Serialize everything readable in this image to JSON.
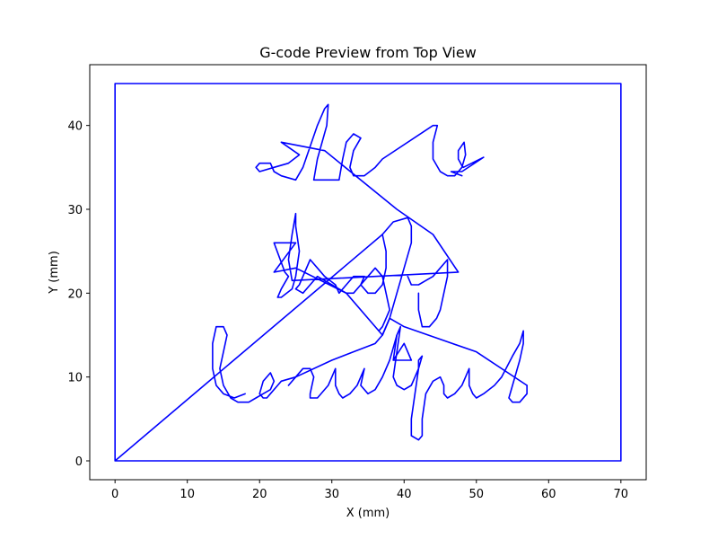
{
  "chart_data": {
    "type": "line",
    "title": "G-code Preview from Top View",
    "xlabel": "X (mm)",
    "ylabel": "Y (mm)",
    "xlim": [
      -3.5,
      73.5
    ],
    "ylim": [
      -2.25,
      47.25
    ],
    "xticks": [
      0,
      10,
      20,
      30,
      40,
      50,
      60,
      70
    ],
    "yticks": [
      0,
      10,
      20,
      30,
      40
    ],
    "grid": false,
    "line_color": "#0000ff",
    "series": [
      {
        "points": [
          [
            0,
            0
          ],
          [
            0,
            45
          ],
          [
            70,
            45
          ],
          [
            70,
            0
          ],
          [
            0,
            0
          ],
          [
            13,
            9.5
          ],
          [
            37,
            27
          ],
          [
            38.5,
            28.5
          ],
          [
            40.5,
            29
          ],
          [
            41,
            28
          ],
          [
            41,
            26
          ],
          [
            40,
            23
          ],
          [
            39,
            20
          ],
          [
            38,
            17
          ],
          [
            37,
            15
          ],
          [
            37,
            15
          ],
          [
            32,
            20
          ],
          [
            25,
            23
          ],
          [
            22,
            22.5
          ],
          [
            25,
            26
          ],
          [
            22,
            26
          ],
          [
            23.5,
            22.5
          ],
          [
            24,
            22
          ],
          [
            23,
            20.5
          ],
          [
            22.5,
            19.5
          ],
          [
            23,
            19.5
          ],
          [
            24.5,
            20.5
          ],
          [
            25,
            22
          ],
          [
            25.5,
            25
          ],
          [
            25,
            28
          ],
          [
            25,
            29.5
          ],
          [
            24.5,
            27
          ],
          [
            24,
            24
          ],
          [
            24.5,
            21.5
          ],
          [
            24.5,
            21.5
          ],
          [
            47.5,
            22.5
          ],
          [
            44,
            27
          ],
          [
            39,
            30
          ],
          [
            29,
            37
          ],
          [
            23,
            38
          ],
          [
            25.5,
            36.5
          ],
          [
            24,
            35.5
          ],
          [
            22,
            35
          ],
          [
            20,
            34.5
          ],
          [
            19.5,
            35
          ],
          [
            20,
            35.5
          ],
          [
            21.5,
            35.5
          ],
          [
            22,
            34.5
          ],
          [
            23,
            34
          ],
          [
            25,
            33.5
          ],
          [
            25,
            33.5
          ],
          [
            26,
            35
          ],
          [
            27,
            37.5
          ],
          [
            28,
            40
          ],
          [
            29,
            42
          ],
          [
            29.5,
            42.5
          ],
          [
            29.3,
            40
          ],
          [
            28,
            36
          ],
          [
            27.5,
            33.5
          ],
          [
            31,
            33.5
          ],
          [
            31.5,
            36
          ],
          [
            32,
            38
          ],
          [
            33,
            39
          ],
          [
            34,
            38.5
          ],
          [
            33,
            37
          ],
          [
            32.5,
            35
          ],
          [
            33,
            34
          ],
          [
            34.5,
            34
          ],
          [
            36,
            35
          ],
          [
            37,
            36
          ],
          [
            44,
            40
          ],
          [
            44.6,
            40
          ],
          [
            44,
            38
          ],
          [
            44,
            36
          ],
          [
            45,
            34.5
          ],
          [
            46,
            34
          ],
          [
            47,
            34
          ],
          [
            48,
            35
          ],
          [
            48.5,
            36.5
          ],
          [
            48.3,
            38
          ],
          [
            47.5,
            37
          ],
          [
            47.5,
            36
          ],
          [
            48,
            35.2
          ],
          [
            48.2,
            35
          ],
          [
            51,
            36.2
          ],
          [
            48,
            34.5
          ],
          [
            46.5,
            34.5
          ],
          [
            48,
            34
          ]
        ]
      },
      {
        "points": [
          [
            57,
            9
          ],
          [
            50,
            13
          ],
          [
            40,
            16
          ],
          [
            38,
            17
          ],
          [
            37,
            15
          ],
          [
            36,
            14
          ],
          [
            33,
            13
          ],
          [
            30,
            12
          ],
          [
            25,
            10
          ],
          [
            23,
            9.5
          ],
          [
            22.5,
            9
          ],
          [
            21.5,
            8
          ],
          [
            21,
            7.5
          ],
          [
            20.5,
            7.5
          ],
          [
            20,
            8
          ],
          [
            20.5,
            9.5
          ],
          [
            21.5,
            10.5
          ],
          [
            22,
            9.5
          ],
          [
            21.5,
            8.5
          ],
          [
            20.5,
            8
          ],
          [
            19.5,
            7.5
          ],
          [
            18.5,
            7
          ],
          [
            17,
            7
          ],
          [
            16,
            7.5
          ],
          [
            15,
            9
          ],
          [
            14.5,
            11
          ],
          [
            15,
            13
          ],
          [
            15.5,
            15
          ],
          [
            15,
            16
          ],
          [
            14,
            16
          ],
          [
            13.5,
            14
          ],
          [
            13.5,
            11
          ],
          [
            14,
            9
          ],
          [
            15,
            8
          ],
          [
            16.5,
            7.5
          ],
          [
            18,
            8
          ]
        ]
      },
      {
        "points": [
          [
            24,
            9
          ],
          [
            25,
            10
          ],
          [
            26,
            11
          ],
          [
            27,
            11
          ],
          [
            27.5,
            10
          ],
          [
            27,
            8
          ],
          [
            27,
            7.5
          ],
          [
            28,
            7.5
          ],
          [
            29.5,
            9
          ],
          [
            30,
            10
          ],
          [
            30.5,
            11
          ],
          [
            30.5,
            9
          ],
          [
            31,
            8
          ],
          [
            31.5,
            7.5
          ],
          [
            32.5,
            8
          ],
          [
            33.5,
            9
          ],
          [
            34,
            10
          ],
          [
            34.5,
            11
          ],
          [
            34,
            9
          ],
          [
            35,
            8
          ],
          [
            36,
            8.5
          ],
          [
            37,
            10
          ],
          [
            38,
            12
          ],
          [
            39,
            15
          ],
          [
            39.5,
            16
          ],
          [
            39,
            13
          ],
          [
            38.5,
            10
          ],
          [
            39,
            9
          ],
          [
            40,
            8.5
          ],
          [
            41,
            9
          ],
          [
            41.5,
            10
          ],
          [
            42,
            11
          ],
          [
            42,
            12
          ],
          [
            42.5,
            12.5
          ],
          [
            42,
            11
          ],
          [
            41.5,
            8
          ],
          [
            41,
            5
          ],
          [
            41,
            3
          ],
          [
            42,
            2.5
          ],
          [
            42.5,
            3
          ],
          [
            42.5,
            5
          ],
          [
            43,
            8
          ],
          [
            44,
            9.5
          ],
          [
            45,
            10
          ],
          [
            45.5,
            9
          ],
          [
            45.5,
            8
          ],
          [
            46,
            7.5
          ],
          [
            47,
            8
          ],
          [
            48,
            9
          ],
          [
            48.5,
            10
          ],
          [
            49,
            11
          ],
          [
            49,
            9
          ],
          [
            49.5,
            8
          ],
          [
            50,
            7.5
          ],
          [
            51,
            8
          ],
          [
            52.5,
            9
          ],
          [
            53.5,
            10
          ],
          [
            55,
            12.5
          ],
          [
            56,
            14
          ],
          [
            56.5,
            15.5
          ],
          [
            56.5,
            14
          ],
          [
            56,
            12
          ],
          [
            55,
            9
          ],
          [
            54.5,
            7.5
          ],
          [
            55,
            7
          ],
          [
            56,
            7
          ],
          [
            57,
            8
          ],
          [
            57,
            9
          ]
        ]
      },
      {
        "points": [
          [
            37,
            27
          ],
          [
            37.5,
            25
          ],
          [
            37.5,
            23
          ],
          [
            37,
            21
          ],
          [
            36,
            20
          ],
          [
            35,
            20
          ],
          [
            34,
            21
          ],
          [
            34.5,
            22
          ],
          [
            33,
            22
          ],
          [
            32,
            21
          ],
          [
            31,
            20
          ],
          [
            30.5,
            21
          ],
          [
            29,
            22
          ],
          [
            28,
            23
          ],
          [
            27,
            24
          ],
          [
            26,
            22
          ],
          [
            25.5,
            21
          ],
          [
            25,
            20.5
          ],
          [
            26,
            20
          ],
          [
            27,
            21
          ],
          [
            28,
            22
          ],
          [
            29,
            21.5
          ],
          [
            30,
            21
          ],
          [
            31,
            20.5
          ],
          [
            32,
            20
          ],
          [
            33,
            20
          ],
          [
            34,
            21
          ],
          [
            35,
            22
          ],
          [
            36,
            23
          ],
          [
            37,
            22
          ],
          [
            37.5,
            20
          ],
          [
            38,
            18
          ],
          [
            37,
            16
          ],
          [
            36.5,
            15.5
          ]
        ]
      },
      {
        "points": [
          [
            40.5,
            22
          ],
          [
            41,
            21
          ],
          [
            42,
            21
          ],
          [
            43,
            21.5
          ],
          [
            44,
            22
          ],
          [
            45,
            23
          ],
          [
            46,
            24
          ],
          [
            46,
            22
          ],
          [
            45.5,
            20
          ],
          [
            45,
            18
          ],
          [
            44.5,
            17
          ],
          [
            43.5,
            16
          ],
          [
            42.5,
            16
          ],
          [
            42,
            18
          ],
          [
            42,
            20
          ]
        ]
      },
      {
        "points": [
          [
            38.5,
            12
          ],
          [
            40,
            14
          ],
          [
            41,
            12
          ],
          [
            38.5,
            12
          ],
          [
            39,
            15
          ]
        ]
      }
    ]
  }
}
